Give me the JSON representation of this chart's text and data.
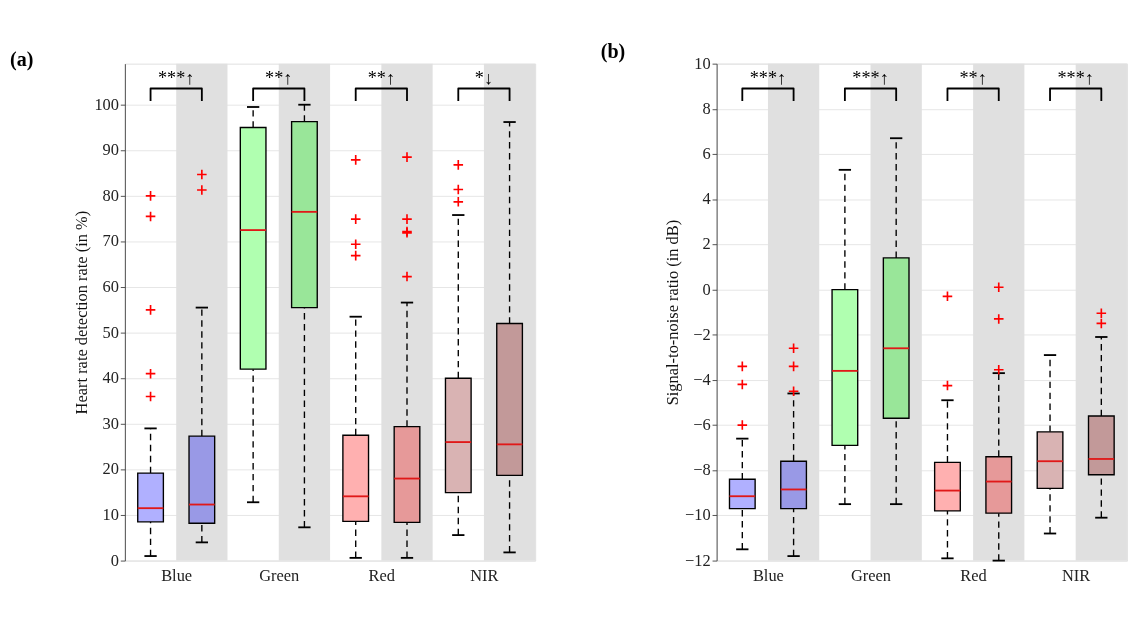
{
  "chart_data": [
    {
      "type": "box",
      "title": "(a)",
      "ylabel": "Heart rate detection rate (in %)",
      "categories": [
        "Blue",
        "Green",
        "Red",
        "NIR"
      ],
      "ylim": [
        0,
        109
      ],
      "yticks": [
        0,
        10,
        20,
        30,
        40,
        50,
        60,
        70,
        80,
        90,
        100
      ],
      "grid": "y",
      "series": [
        {
          "colors": [
            "#b0b0ff",
            "#b0ffb0",
            "#ffb0b0",
            "#d9b3b3"
          ],
          "boxes": [
            {
              "low": 1,
              "q1": 8.5,
              "median": 11.5,
              "q3": 19.2,
              "high": 29,
              "outliers": [
                36,
                41,
                55,
                75.5,
                80
              ]
            },
            {
              "low": 12.8,
              "q1": 42,
              "median": 72.5,
              "q3": 95,
              "high": 99.5
            },
            {
              "low": 0.6,
              "q1": 8.6,
              "median": 14.1,
              "q3": 27.5,
              "high": 53.5,
              "outliers": [
                66.9,
                69.4,
                74.9,
                87.9
              ]
            },
            {
              "low": 5.6,
              "q1": 14.9,
              "median": 26,
              "q3": 40,
              "high": 75.8,
              "outliers": [
                78.7,
                81.4,
                86.8
              ]
            }
          ]
        },
        {
          "colors": [
            "#9999e6",
            "#99e699",
            "#e69999",
            "#c29999"
          ],
          "boxes": [
            {
              "low": 4,
              "q1": 8.2,
              "median": 12.3,
              "q3": 27.3,
              "high": 55.5,
              "outliers": [
                81.3,
                84.7
              ]
            },
            {
              "low": 7.3,
              "q1": 55.5,
              "median": 76.5,
              "q3": 96.3,
              "high": 100
            },
            {
              "low": 0.6,
              "q1": 8.4,
              "median": 18,
              "q3": 29.4,
              "high": 56.6,
              "outliers": [
                62.3,
                71.9,
                72.2,
                74.9,
                88.5
              ]
            },
            {
              "low": 1.8,
              "q1": 18.7,
              "median": 25.5,
              "q3": 52,
              "high": 96.2
            }
          ]
        }
      ],
      "bands": [
        {
          "axis": "x",
          "from": "Blue",
          "to": "Blue",
          "color": "#e0e0e0"
        },
        {
          "axis": "x",
          "from": "Green",
          "to": "Green",
          "color": "#e0e0e0"
        },
        {
          "axis": "x",
          "from": "Red",
          "to": "Red",
          "color": "#e0e0e0"
        },
        {
          "axis": "x",
          "from": "NIR",
          "to": "NIR",
          "color": "#e0e0e0"
        }
      ],
      "annotations": [
        {
          "text": "***↑",
          "x": "Blue"
        },
        {
          "text": "**↑",
          "x": "Green"
        },
        {
          "text": "**↑",
          "x": "Red"
        },
        {
          "text": "*↓",
          "x": "NIR"
        }
      ]
    },
    {
      "type": "box",
      "title": "(b)",
      "ylabel": "Signal-to-noise ratio (in dB)",
      "categories": [
        "Blue",
        "Green",
        "Red",
        "NIR"
      ],
      "ylim": [
        -12,
        10
      ],
      "yticks": [
        -12,
        -10,
        -8,
        -6,
        -4,
        -2,
        0,
        2,
        4,
        6,
        8,
        10
      ],
      "grid": "y",
      "series": [
        {
          "colors": [
            "#b0b0ff",
            "#b0ffb0",
            "#ffb0b0",
            "#d9b3b3"
          ],
          "boxes": [
            {
              "low": -11.5,
              "q1": -9.7,
              "median": -9.15,
              "q3": -8.4,
              "high": -6.6,
              "outliers": [
                -3.4,
                -4.2,
                -6
              ]
            },
            {
              "low": -9.5,
              "q1": -6.9,
              "median": -3.6,
              "q3": 0,
              "high": 5.3
            },
            {
              "low": -11.9,
              "q1": -9.8,
              "median": -8.9,
              "q3": -7.65,
              "high": -4.9,
              "outliers": [
                -0.3,
                -4.25
              ]
            },
            {
              "low": -10.8,
              "q1": -8.8,
              "median": -7.6,
              "q3": -6.3,
              "high": -2.9
            }
          ]
        },
        {
          "colors": [
            "#9999e6",
            "#99e699",
            "#e69999",
            "#c29999"
          ],
          "boxes": [
            {
              "low": -11.8,
              "q1": -9.7,
              "median": -8.85,
              "q3": -7.6,
              "high": -4.6,
              "outliers": [
                -2.6,
                -3.4,
                -4.5
              ]
            },
            {
              "low": -9.5,
              "q1": -5.7,
              "median": -2.6,
              "q3": 1.4,
              "high": 6.7
            },
            {
              "low": -12,
              "q1": -9.9,
              "median": -8.5,
              "q3": -7.4,
              "high": -3.7,
              "outliers": [
                0.1,
                -1.3,
                -3.55
              ]
            },
            {
              "low": -10.1,
              "q1": -8.2,
              "median": -7.5,
              "q3": -5.6,
              "high": -2.1,
              "outliers": [
                -1.05,
                -1.5
              ]
            }
          ]
        }
      ],
      "bands": [
        {
          "axis": "x",
          "from": "Blue",
          "to": "Blue",
          "color": "#e0e0e0"
        },
        {
          "axis": "x",
          "from": "Green",
          "to": "Green",
          "color": "#e0e0e0"
        },
        {
          "axis": "x",
          "from": "Red",
          "to": "Red",
          "color": "#e0e0e0"
        },
        {
          "axis": "x",
          "from": "NIR",
          "to": "NIR",
          "color": "#e0e0e0"
        }
      ],
      "annotations": [
        {
          "text": "***↑",
          "x": "Blue"
        },
        {
          "text": "***↑",
          "x": "Green"
        },
        {
          "text": "**↑",
          "x": "Red"
        },
        {
          "text": "***↑",
          "x": "NIR"
        }
      ]
    }
  ]
}
